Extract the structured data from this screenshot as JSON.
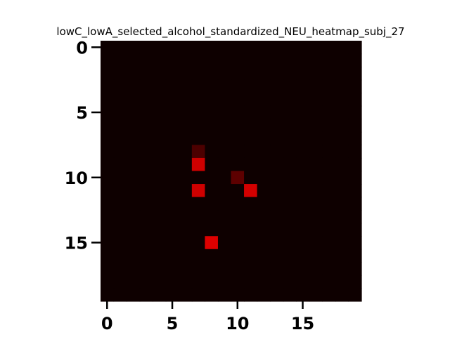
{
  "chart_data": {
    "type": "heatmap",
    "title": "lowC_lowA_selected_alcohol_standardized_NEU_heatmap_subj_27",
    "xlabel": "",
    "ylabel": "",
    "rows": 20,
    "cols": 20,
    "x_ticks": [
      {
        "value": 0,
        "label": "0"
      },
      {
        "value": 5,
        "label": "5"
      },
      {
        "value": 10,
        "label": "10"
      },
      {
        "value": 15,
        "label": "15"
      }
    ],
    "y_ticks": [
      {
        "value": 0,
        "label": "0"
      },
      {
        "value": 5,
        "label": "5"
      },
      {
        "value": 10,
        "label": "10"
      },
      {
        "value": 15,
        "label": "15"
      }
    ],
    "y_inverted": true,
    "grid": false,
    "colormap": {
      "low": "#0e0000",
      "high": "#dd0000"
    },
    "background_value": 0.0,
    "highlighted_cells": [
      {
        "row": 8,
        "col": 7,
        "value": 0.3
      },
      {
        "row": 9,
        "col": 7,
        "value": 0.93
      },
      {
        "row": 10,
        "col": 10,
        "value": 0.38
      },
      {
        "row": 11,
        "col": 7,
        "value": 0.93
      },
      {
        "row": 11,
        "col": 11,
        "value": 0.95
      },
      {
        "row": 15,
        "col": 8,
        "value": 1.0
      }
    ]
  }
}
